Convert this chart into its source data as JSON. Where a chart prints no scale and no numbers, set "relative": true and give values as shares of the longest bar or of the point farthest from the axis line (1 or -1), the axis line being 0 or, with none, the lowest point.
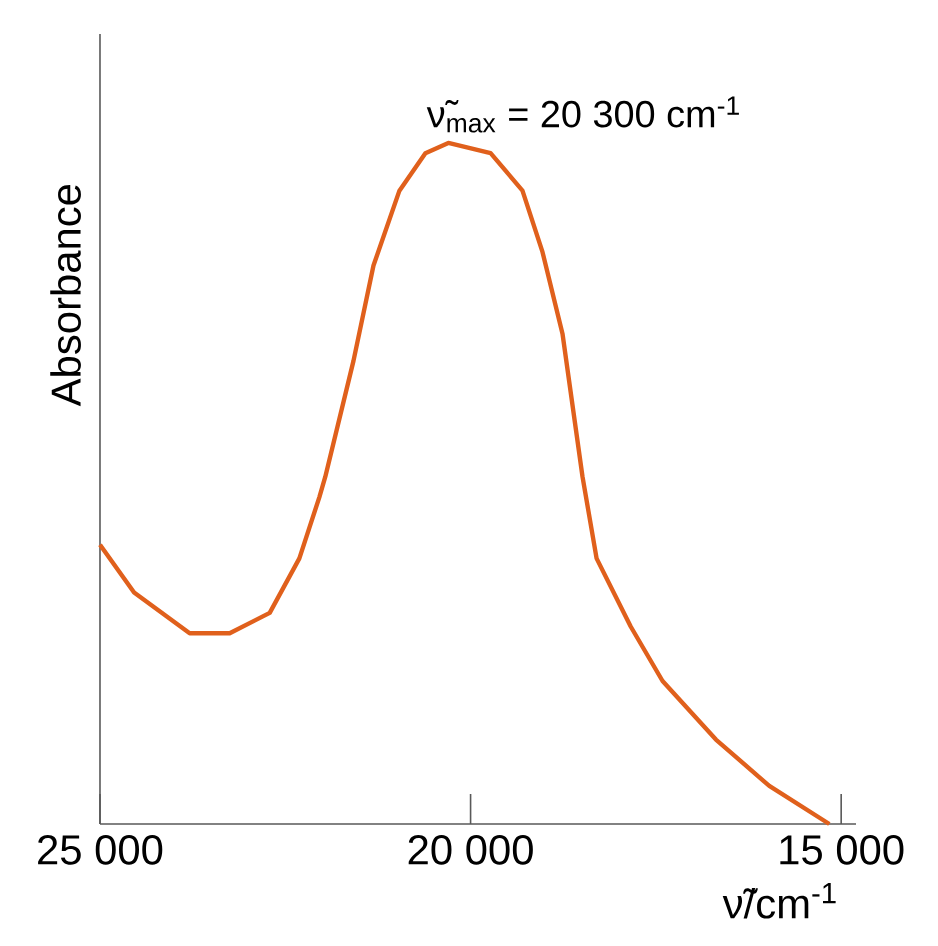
{
  "chart_data": {
    "type": "line",
    "ylabel": "Absorbance",
    "xlabel": "ν̃/cm$^{-1}$",
    "relative": true,
    "xlim": [
      25000,
      14800
    ],
    "xticks": [
      {
        "value": 25000,
        "label": "25 000"
      },
      {
        "value": 20000,
        "label": "20 000"
      },
      {
        "value": 15000,
        "label": "15 000"
      }
    ],
    "x": [
      25000,
      24540,
      23790,
      23250,
      22710,
      22310,
      22040,
      21960,
      21580,
      21310,
      20960,
      20610,
      20300,
      19730,
      19300,
      19030,
      18760,
      18490,
      18300,
      17840,
      17410,
      16690,
      15970,
      15160
    ],
    "series": [
      {
        "color": "#e0601c",
        "values": [
          0.41,
          0.34,
          0.28,
          0.28,
          0.31,
          0.39,
          0.48,
          0.51,
          0.68,
          0.82,
          0.93,
          0.985,
          1.0,
          0.985,
          0.93,
          0.84,
          0.72,
          0.51,
          0.39,
          0.29,
          0.21,
          0.124,
          0.056,
          0.0
        ]
      }
    ],
    "annotations": [
      {
        "text": "ν̃$_{max}$ = 20 300 cm$^{-1}$",
        "x": 20300,
        "y": 1.0
      }
    ],
    "grid": false,
    "marker": "none",
    "line_style": "solid"
  }
}
